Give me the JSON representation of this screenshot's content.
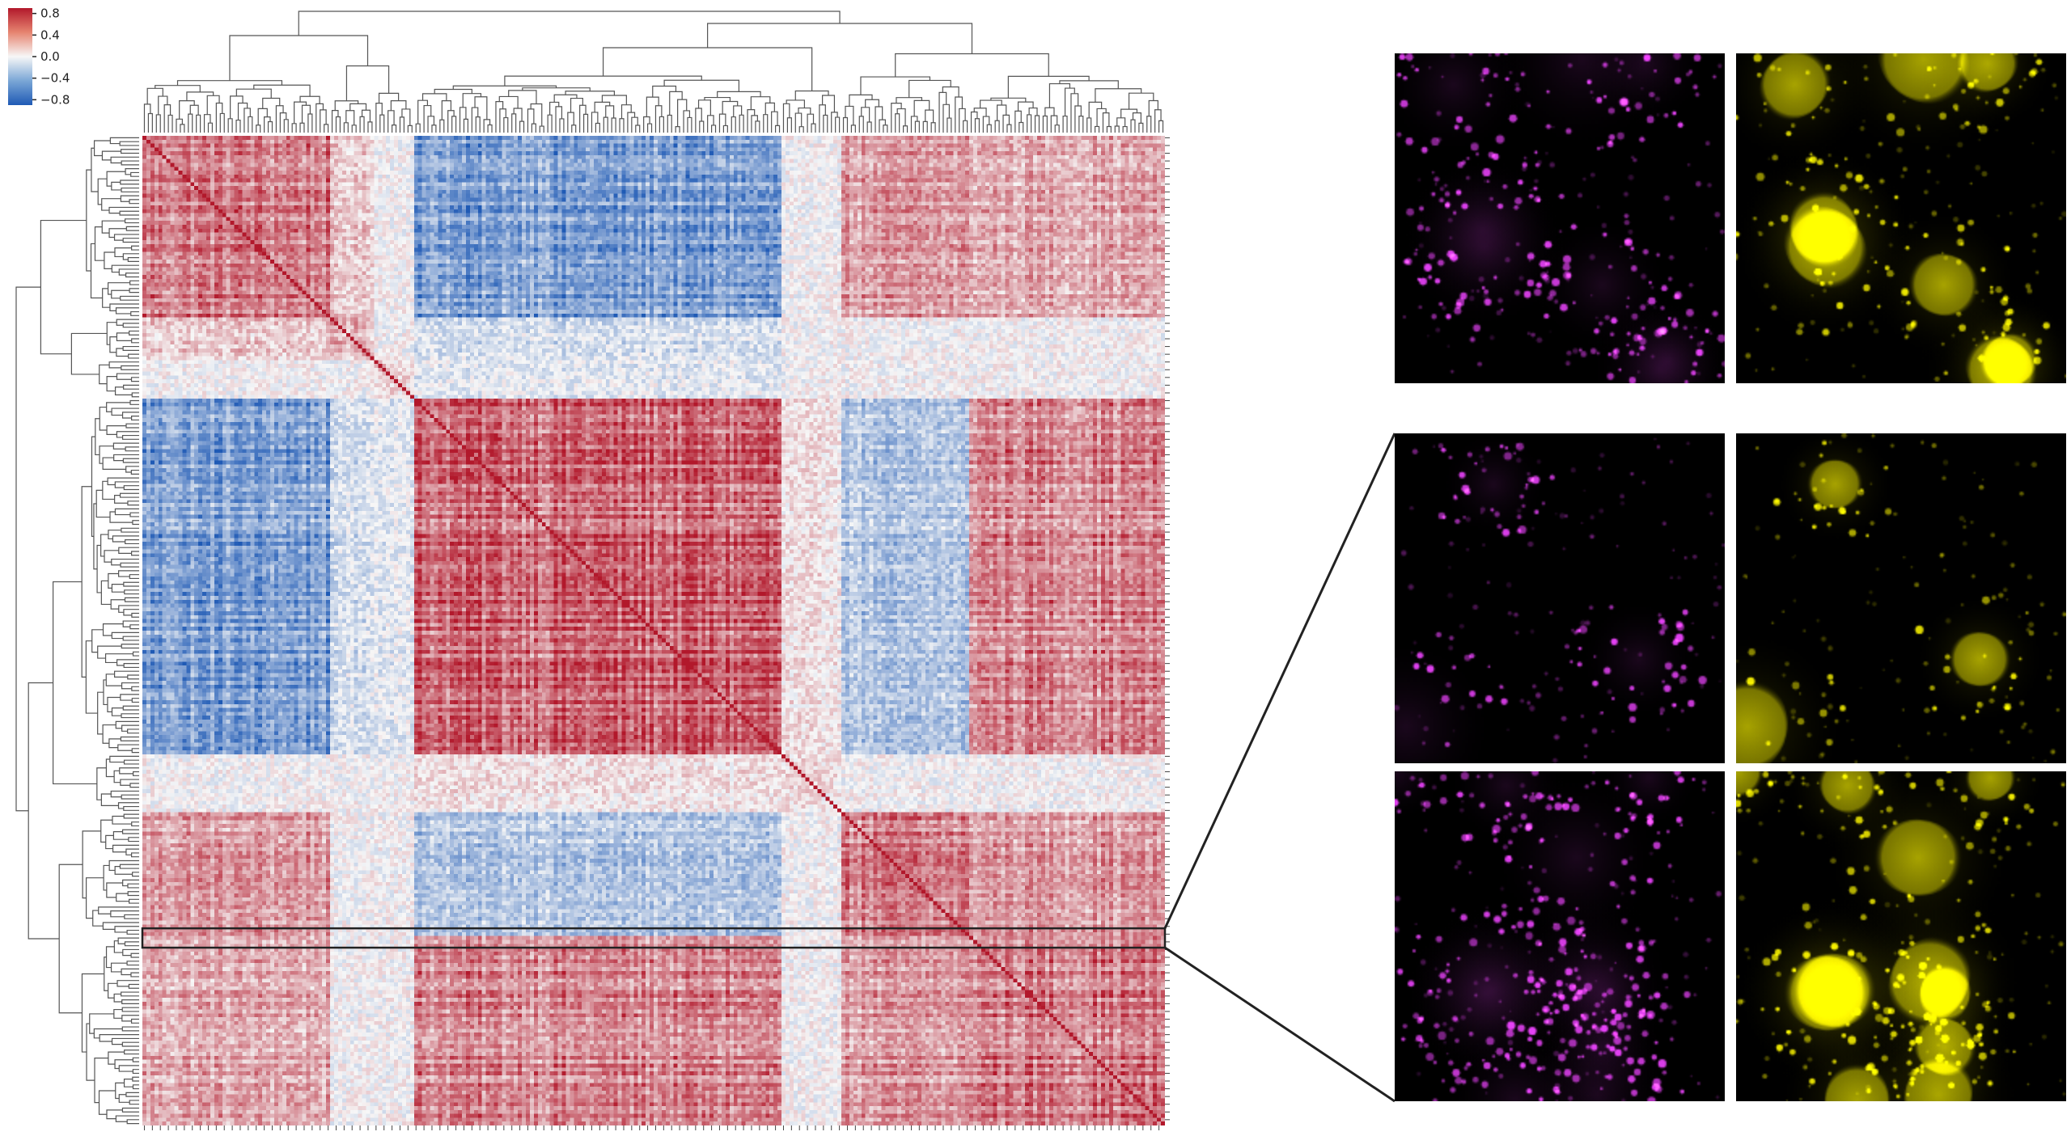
{
  "chart_data": {
    "type": "heatmap",
    "subtype": "clustered correlation matrix with row and column dendrograms",
    "colormap": "diverging blue-white-red",
    "colors": {
      "low": "#1f5ab5",
      "mid": "#f7f7f7",
      "high": "#b2182b"
    },
    "colorbar": {
      "range": [
        -0.9,
        0.9
      ],
      "ticks": [
        0.8,
        0.4,
        0.0,
        -0.4,
        -0.8
      ],
      "tick_labels": [
        "0.8",
        "0.4",
        "0.0",
        "−0.4",
        "−0.8"
      ],
      "placement": "top-left"
    },
    "n_items": 256,
    "diagonal_value": 1.0,
    "clusters": [
      {
        "id": "A",
        "start": 0,
        "end": 47,
        "within": 0.55
      },
      {
        "id": "B",
        "start": 47,
        "end": 58,
        "within": 0.3
      },
      {
        "id": "C",
        "start": 58,
        "end": 68,
        "within": 0.2
      },
      {
        "id": "D",
        "start": 68,
        "end": 160,
        "within": 0.65
      },
      {
        "id": "E",
        "start": 160,
        "end": 175,
        "within": 0.1
      },
      {
        "id": "F",
        "start": 175,
        "end": 207,
        "within": 0.5
      },
      {
        "id": "G",
        "start": 207,
        "end": 256,
        "within": 0.55
      }
    ],
    "between_clusters": [
      [
        "A",
        "D",
        -0.55
      ],
      [
        "A",
        "F",
        0.4
      ],
      [
        "A",
        "G",
        0.35
      ],
      [
        "D",
        "F",
        -0.3
      ],
      [
        "D",
        "G",
        0.5
      ],
      [
        "F",
        "G",
        0.4
      ],
      [
        "A",
        "B",
        0.2
      ],
      [
        "B",
        "D",
        -0.15
      ],
      [
        "C",
        "D",
        -0.1
      ],
      [
        "E",
        "D",
        0.1
      ]
    ],
    "highlighted_rows": {
      "start": 205,
      "end": 210
    },
    "grid": false,
    "legend": "none"
  },
  "micrographs": {
    "channels": [
      {
        "name": "magenta",
        "color": "#e040f0"
      },
      {
        "name": "yellow",
        "color": "#e6e000"
      }
    ],
    "layout": "3 rows x 2 columns; lower two rows linked to highlighted heatmap rows",
    "rows": [
      {
        "seed": 11,
        "density": "dispersed puncta"
      },
      {
        "seed": 23,
        "density": "sparse cells, perinuclear clusters"
      },
      {
        "seed": 37,
        "density": "dense cells, abundant puncta"
      }
    ]
  },
  "colors": {
    "background": "#ffffff",
    "dendrogram": "#555555",
    "highlight_box": "#222222",
    "zoom_lines": "#222222"
  }
}
